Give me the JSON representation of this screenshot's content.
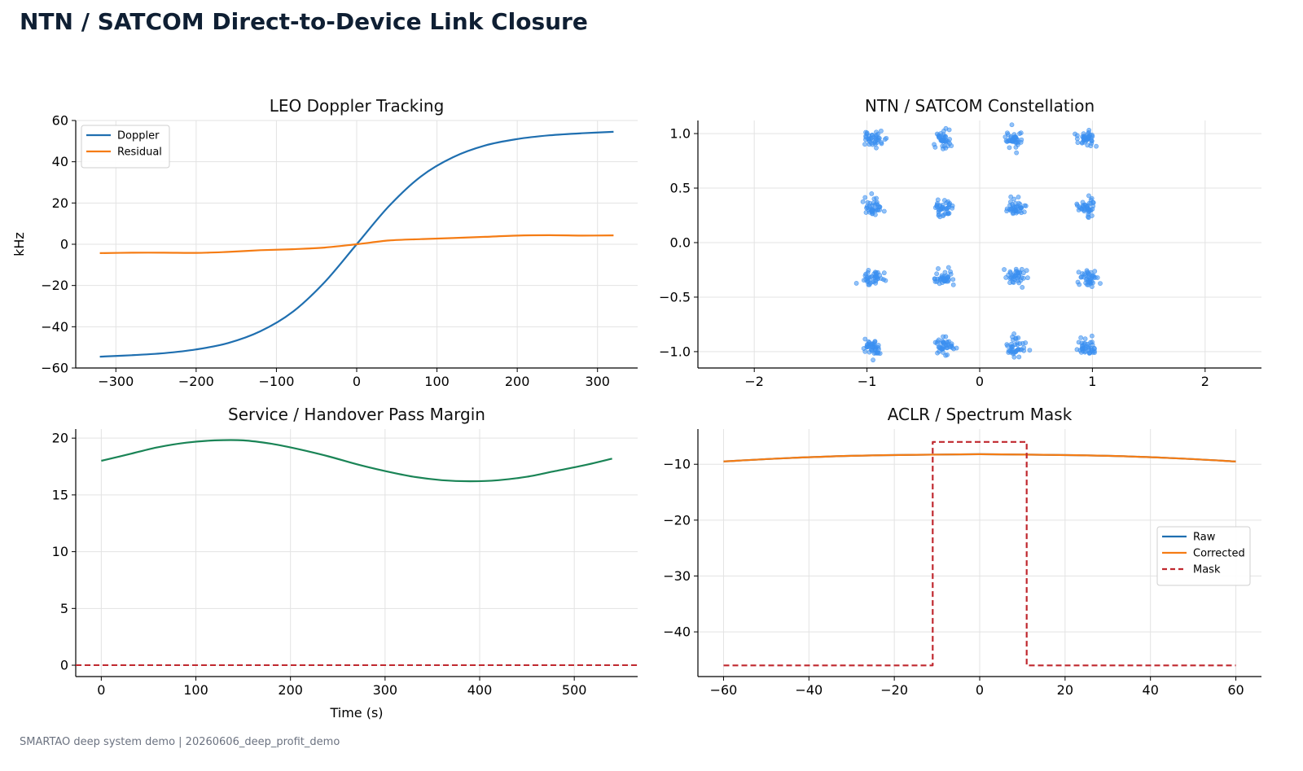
{
  "page": {
    "title": "NTN / SATCOM Direct-to-Device Link Closure",
    "footer": "SMARTAO deep system demo | 20260606_deep_profit_demo"
  },
  "colors": {
    "doppler": "#1f6fb0",
    "residual": "#f57c14",
    "margin": "#1a8456",
    "mask": "#c0282f",
    "constellation": "#3b8ff0",
    "grid": "#e3e3e3"
  },
  "chart_data": [
    {
      "type": "line",
      "title": "LEO Doppler Tracking",
      "xlabel": "",
      "ylabel": "kHz",
      "xlim": [
        -350,
        350
      ],
      "ylim": [
        -60,
        60
      ],
      "xticks": [
        -300,
        -200,
        -100,
        0,
        100,
        200,
        300
      ],
      "yticks": [
        -60,
        -40,
        -20,
        0,
        20,
        40,
        60
      ],
      "grid": true,
      "legend": "top-left",
      "series": [
        {
          "name": "Doppler",
          "x": [
            -320,
            -280,
            -240,
            -200,
            -160,
            -120,
            -80,
            -40,
            0,
            40,
            80,
            120,
            160,
            200,
            240,
            280,
            320
          ],
          "y": [
            -54.5,
            -53.8,
            -52.8,
            -51,
            -47.9,
            -42.2,
            -32.9,
            -18.4,
            0,
            18.4,
            32.9,
            42.2,
            47.9,
            51,
            52.8,
            53.8,
            54.5
          ]
        },
        {
          "name": "Residual",
          "x": [
            -320,
            -280,
            -240,
            -200,
            -160,
            -120,
            -80,
            -40,
            0,
            40,
            80,
            120,
            160,
            200,
            240,
            280,
            320
          ],
          "y": [
            -4.3,
            -4.1,
            -4.1,
            -4.2,
            -3.7,
            -2.9,
            -2.4,
            -1.6,
            0,
            1.8,
            2.5,
            3,
            3.6,
            4.2,
            4.4,
            4.2,
            4.3
          ]
        }
      ]
    },
    {
      "type": "scatter",
      "title": "NTN / SATCOM Constellation",
      "xlabel": "",
      "ylabel": "",
      "xlim": [
        -2.5,
        2.5
      ],
      "ylim": [
        -1.15,
        1.12
      ],
      "xticks": [
        -2,
        -1,
        0,
        1,
        2
      ],
      "yticks": [
        -1.0,
        -0.5,
        0.0,
        0.5,
        1.0
      ],
      "grid": true,
      "clusters": [
        {
          "x": -0.95,
          "y": 0.95
        },
        {
          "x": -0.32,
          "y": 0.95
        },
        {
          "x": 0.32,
          "y": 0.95
        },
        {
          "x": 0.95,
          "y": 0.95
        },
        {
          "x": -0.95,
          "y": 0.32
        },
        {
          "x": -0.32,
          "y": 0.32
        },
        {
          "x": 0.32,
          "y": 0.32
        },
        {
          "x": 0.95,
          "y": 0.32
        },
        {
          "x": -0.95,
          "y": -0.32
        },
        {
          "x": -0.32,
          "y": -0.32
        },
        {
          "x": 0.32,
          "y": -0.32
        },
        {
          "x": 0.95,
          "y": -0.32
        },
        {
          "x": -0.95,
          "y": -0.95
        },
        {
          "x": -0.32,
          "y": -0.95
        },
        {
          "x": 0.32,
          "y": -0.95
        },
        {
          "x": 0.95,
          "y": -0.95
        }
      ],
      "cluster_spread": 0.04
    },
    {
      "type": "line",
      "title": "Service / Handover Pass Margin",
      "xlabel": "Time (s)",
      "ylabel": "",
      "xlim": [
        -27,
        567
      ],
      "ylim": [
        -1,
        20.8
      ],
      "xticks": [
        0,
        100,
        200,
        300,
        400,
        500
      ],
      "yticks": [
        0,
        5,
        10,
        15,
        20
      ],
      "grid": true,
      "series": [
        {
          "name": "",
          "x": [
            0,
            30,
            60,
            90,
            120,
            150,
            180,
            210,
            240,
            270,
            300,
            330,
            360,
            390,
            420,
            450,
            480,
            510,
            540
          ],
          "y": [
            18,
            18.6,
            19.2,
            19.6,
            19.8,
            19.8,
            19.5,
            19,
            18.4,
            17.7,
            17.1,
            16.6,
            16.3,
            16.2,
            16.3,
            16.6,
            17.1,
            17.6,
            18.2
          ]
        }
      ],
      "reference_line": {
        "y": 0,
        "style": "dashed"
      }
    },
    {
      "type": "line",
      "title": "ACLR / Spectrum Mask",
      "xlabel": "",
      "ylabel": "",
      "xlim": [
        -66,
        66
      ],
      "ylim": [
        -48,
        -3.7
      ],
      "xticks": [
        -60,
        -40,
        -20,
        0,
        20,
        40,
        60
      ],
      "yticks": [
        -40,
        -30,
        -20,
        -10
      ],
      "grid": true,
      "legend": "right",
      "series": [
        {
          "name": "Raw",
          "x": [
            -60,
            -45,
            -30,
            -15,
            0,
            15,
            30,
            45,
            60
          ],
          "y": [
            -9.5,
            -8.9,
            -8.5,
            -8.3,
            -8.2,
            -8.3,
            -8.5,
            -8.9,
            -9.5
          ]
        },
        {
          "name": "Corrected",
          "x": [
            -60,
            -45,
            -30,
            -15,
            0,
            15,
            30,
            45,
            60
          ],
          "y": [
            -9.5,
            -8.9,
            -8.5,
            -8.3,
            -8.2,
            -8.3,
            -8.5,
            -8.9,
            -9.5
          ]
        },
        {
          "name": "Mask",
          "x": [
            -60,
            -11,
            -11,
            11,
            11,
            60
          ],
          "y": [
            -46,
            -46,
            -6,
            -6,
            -46,
            -46
          ]
        }
      ]
    }
  ]
}
